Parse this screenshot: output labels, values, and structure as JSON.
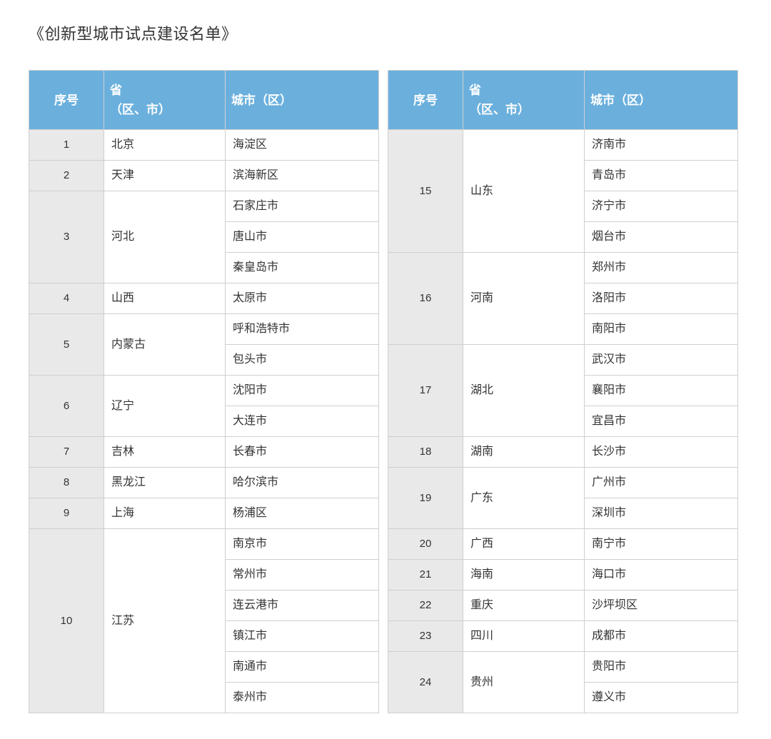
{
  "title": "《创新型城市试点建设名单》",
  "header_bg": "#6bb0dd",
  "header_text_color": "#ffffff",
  "seq_bg": "#e9e9e9",
  "border_color": "#cfcfcf",
  "columns": {
    "seq": "序号",
    "province": "省\n（区、市）",
    "city": "城市（区）"
  },
  "left": [
    {
      "seq": 1,
      "province": "北京",
      "cities": [
        "海淀区"
      ]
    },
    {
      "seq": 2,
      "province": "天津",
      "cities": [
        "滨海新区"
      ]
    },
    {
      "seq": 3,
      "province": "河北",
      "cities": [
        "石家庄市",
        "唐山市",
        "秦皇岛市"
      ]
    },
    {
      "seq": 4,
      "province": "山西",
      "cities": [
        "太原市"
      ]
    },
    {
      "seq": 5,
      "province": "内蒙古",
      "cities": [
        "呼和浩特市",
        "包头市"
      ]
    },
    {
      "seq": 6,
      "province": "辽宁",
      "cities": [
        "沈阳市",
        "大连市"
      ]
    },
    {
      "seq": 7,
      "province": "吉林",
      "cities": [
        "长春市"
      ]
    },
    {
      "seq": 8,
      "province": "黑龙江",
      "cities": [
        "哈尔滨市"
      ]
    },
    {
      "seq": 9,
      "province": "上海",
      "cities": [
        "杨浦区"
      ]
    },
    {
      "seq": 10,
      "province": "江苏",
      "cities": [
        "南京市",
        "常州市",
        "连云港市",
        "镇江市",
        "南通市",
        "泰州市"
      ]
    }
  ],
  "right": [
    {
      "seq": 15,
      "province": "山东",
      "cities": [
        "济南市",
        "青岛市",
        "济宁市",
        "烟台市"
      ]
    },
    {
      "seq": 16,
      "province": "河南",
      "cities": [
        "郑州市",
        "洛阳市",
        "南阳市"
      ]
    },
    {
      "seq": 17,
      "province": "湖北",
      "cities": [
        "武汉市",
        "襄阳市",
        "宜昌市"
      ]
    },
    {
      "seq": 18,
      "province": "湖南",
      "cities": [
        "长沙市"
      ]
    },
    {
      "seq": 19,
      "province": "广东",
      "cities": [
        "广州市",
        "深圳市"
      ]
    },
    {
      "seq": 20,
      "province": "广西",
      "cities": [
        "南宁市"
      ]
    },
    {
      "seq": 21,
      "province": "海南",
      "cities": [
        "海口市"
      ]
    },
    {
      "seq": 22,
      "province": "重庆",
      "cities": [
        "沙坪坝区"
      ]
    },
    {
      "seq": 23,
      "province": "四川",
      "cities": [
        "成都市"
      ]
    },
    {
      "seq": 24,
      "province": "贵州",
      "cities": [
        "贵阳市",
        "遵义市"
      ]
    }
  ]
}
